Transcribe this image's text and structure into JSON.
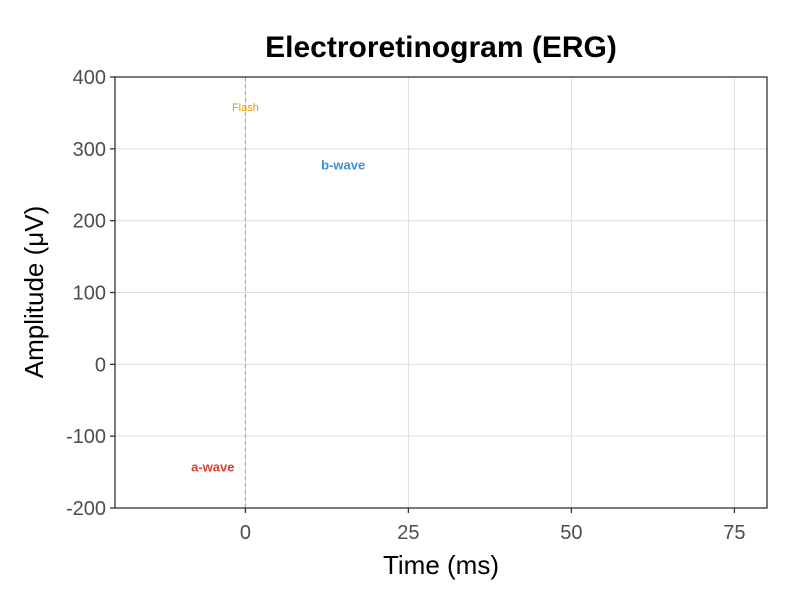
{
  "chart_data": {
    "type": "line",
    "title": "Electroretinogram (ERG)",
    "xlabel": "Time (ms)",
    "ylabel": "Amplitude (μV)",
    "xlim": [
      -20,
      80
    ],
    "ylim": [
      -200,
      400
    ],
    "x_ticks": [
      0,
      25,
      50,
      75
    ],
    "y_ticks": [
      -200,
      -100,
      0,
      100,
      200,
      300,
      400
    ],
    "grid": true,
    "series": [],
    "vline": {
      "x": 0,
      "label": "Flash",
      "label_y": 358,
      "color": "#e69f00"
    },
    "annotations": [
      {
        "text": "b-wave",
        "x": 15,
        "y": 278,
        "color": "#3c8fd6"
      },
      {
        "text": "a-wave",
        "x": -5,
        "y": -142,
        "color": "#d8412f"
      }
    ]
  }
}
